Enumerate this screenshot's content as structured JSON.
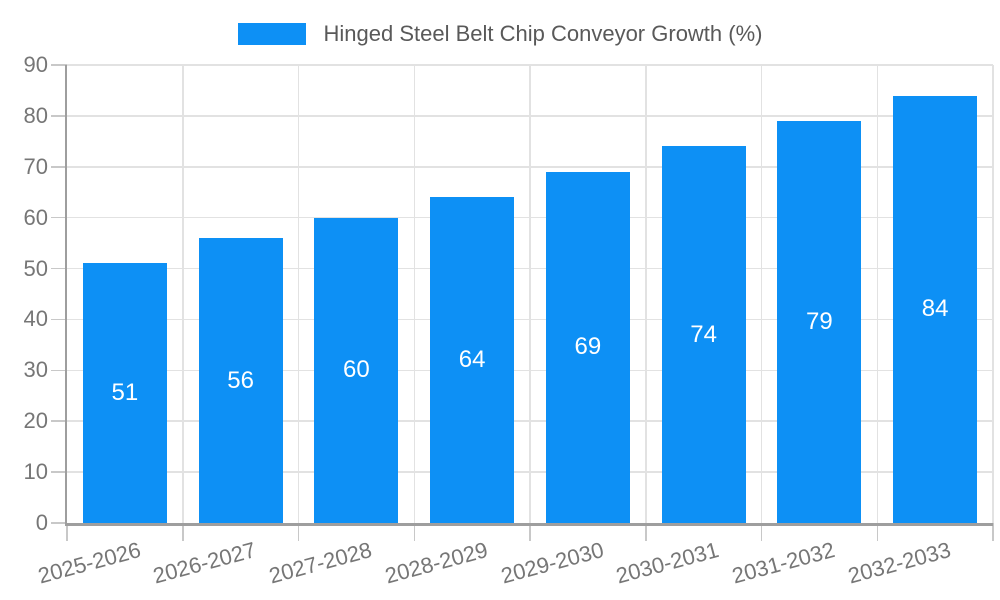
{
  "chart_data": {
    "type": "bar",
    "title": "",
    "series_label": "Hinged Steel Belt Chip Conveyor Growth (%)",
    "categories": [
      "2025-2026",
      "2026-2027",
      "2027-2028",
      "2028-2029",
      "2029-2030",
      "2030-2031",
      "2031-2032",
      "2032-2033"
    ],
    "values": [
      51,
      56,
      60,
      64,
      69,
      74,
      79,
      84
    ],
    "yticks": [
      0,
      10,
      20,
      30,
      40,
      50,
      60,
      70,
      80,
      90
    ],
    "ylim": [
      0,
      90
    ],
    "xlabel": "",
    "ylabel": "",
    "grid": true,
    "legend_position": "top-center",
    "bar_color": "#0d90f5",
    "value_label_color": "#ffffff",
    "tick_label_color": "#767676",
    "legend_text_color": "#595959",
    "grid_color": "#e2e2e2",
    "tick_mark_color": "#c8c8c8",
    "axis_color": "#9e9e9e",
    "background_color": "#ffffff"
  }
}
